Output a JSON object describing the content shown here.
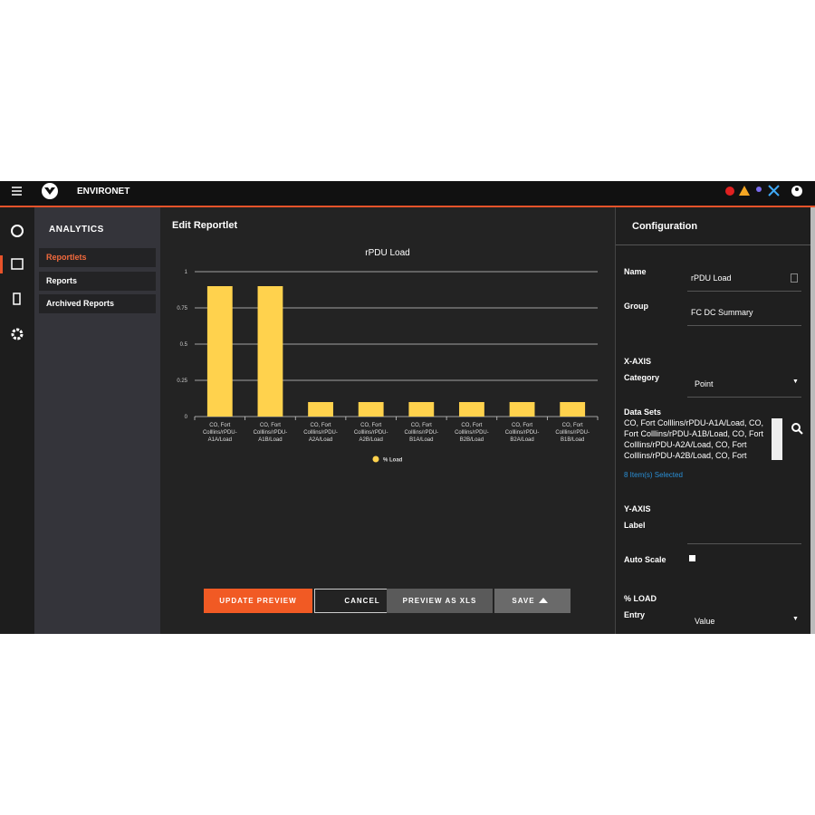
{
  "header": {
    "brand": "ENVIRONET"
  },
  "sidebar": {
    "title": "ANALYTICS",
    "items": [
      "Reportlets",
      "Reports",
      "Archived Reports"
    ]
  },
  "main": {
    "title": "Edit Reportlet",
    "buttons": [
      "UPDATE PREVIEW",
      "CANCEL",
      "PREVIEW AS XLS",
      "SAVE"
    ]
  },
  "chart_data": {
    "type": "bar",
    "title": "rPDU Load",
    "categories": [
      "CO, Fort Colllins/rPDU-A1A/Load",
      "CO, Fort Colllins/rPDU-A1B/Load",
      "CO, Fort Colllins/rPDU-A2A/Load",
      "CO, Fort Colllins/rPDU-A2B/Load",
      "CO, Fort Colllins/rPDU-B1A/Load",
      "CO, Fort Colllins/rPDU-B2B/Load",
      "CO, Fort Colllins/rPDU-B2A/Load",
      "CO, Fort Colllins/rPDU-B1B/Load"
    ],
    "series": [
      {
        "name": "% Load",
        "color": "#ffd24d",
        "values": [
          0.9,
          0.9,
          0.1,
          0.1,
          0.1,
          0.1,
          0.1,
          0.1
        ]
      }
    ],
    "ylim": [
      0,
      1
    ],
    "yticks": [
      0,
      0.25,
      0.5,
      0.75,
      1
    ],
    "grid": true
  },
  "config": {
    "title": "Configuration",
    "name_label": "Name",
    "name_value": "rPDU Load",
    "group_label": "Group",
    "group_value": "FC DC Summary",
    "x_axis_heading": "X-AXIS",
    "category_label": "Category",
    "category_value": "Point",
    "data_sets_label": "Data Sets",
    "data_sets_value": "CO, Fort Colllins/rPDU-A1A/Load, CO, Fort Colllins/rPDU-A1B/Load, CO, Fort Colllins/rPDU-A2A/Load, CO, Fort Colllins/rPDU-A2B/Load, CO, Fort",
    "selected_count": "8 Item(s) Selected",
    "y_axis_heading": "Y-AXIS",
    "y_label_label": "Label",
    "auto_scale_label": "Auto Scale",
    "series_heading": "% LOAD",
    "entry_label": "Entry",
    "entry_value": "Value"
  }
}
